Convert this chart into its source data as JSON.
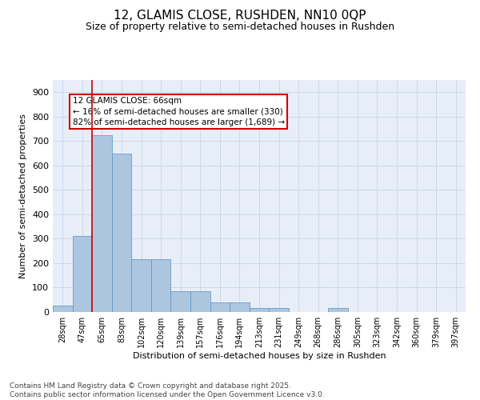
{
  "title_line1": "12, GLAMIS CLOSE, RUSHDEN, NN10 0QP",
  "title_line2": "Size of property relative to semi-detached houses in Rushden",
  "xlabel": "Distribution of semi-detached houses by size in Rushden",
  "ylabel": "Number of semi-detached properties",
  "categories": [
    "28sqm",
    "47sqm",
    "65sqm",
    "83sqm",
    "102sqm",
    "120sqm",
    "139sqm",
    "157sqm",
    "176sqm",
    "194sqm",
    "213sqm",
    "231sqm",
    "249sqm",
    "268sqm",
    "286sqm",
    "305sqm",
    "323sqm",
    "342sqm",
    "360sqm",
    "379sqm",
    "397sqm"
  ],
  "values": [
    25,
    310,
    725,
    650,
    215,
    215,
    85,
    85,
    40,
    40,
    15,
    15,
    0,
    0,
    15,
    0,
    0,
    0,
    0,
    0,
    0
  ],
  "bar_color": "#adc6e0",
  "bar_edge_color": "#5a8fc0",
  "vline_x_index": 2,
  "vline_color": "#cc0000",
  "annotation_text": "12 GLAMIS CLOSE: 66sqm\n← 16% of semi-detached houses are smaller (330)\n82% of semi-detached houses are larger (1,689) →",
  "annotation_box_color": "#ffffff",
  "annotation_box_edge_color": "#cc0000",
  "ylim": [
    0,
    950
  ],
  "yticks": [
    0,
    100,
    200,
    300,
    400,
    500,
    600,
    700,
    800,
    900
  ],
  "grid_color": "#d0d8e8",
  "background_color": "#e8eef8",
  "footer_text": "Contains HM Land Registry data © Crown copyright and database right 2025.\nContains public sector information licensed under the Open Government Licence v3.0.",
  "title_fontsize": 11,
  "subtitle_fontsize": 9,
  "annotation_fontsize": 7.5,
  "footer_fontsize": 6.5,
  "ylabel_fontsize": 8,
  "xlabel_fontsize": 8,
  "ytick_fontsize": 8,
  "xtick_fontsize": 7
}
